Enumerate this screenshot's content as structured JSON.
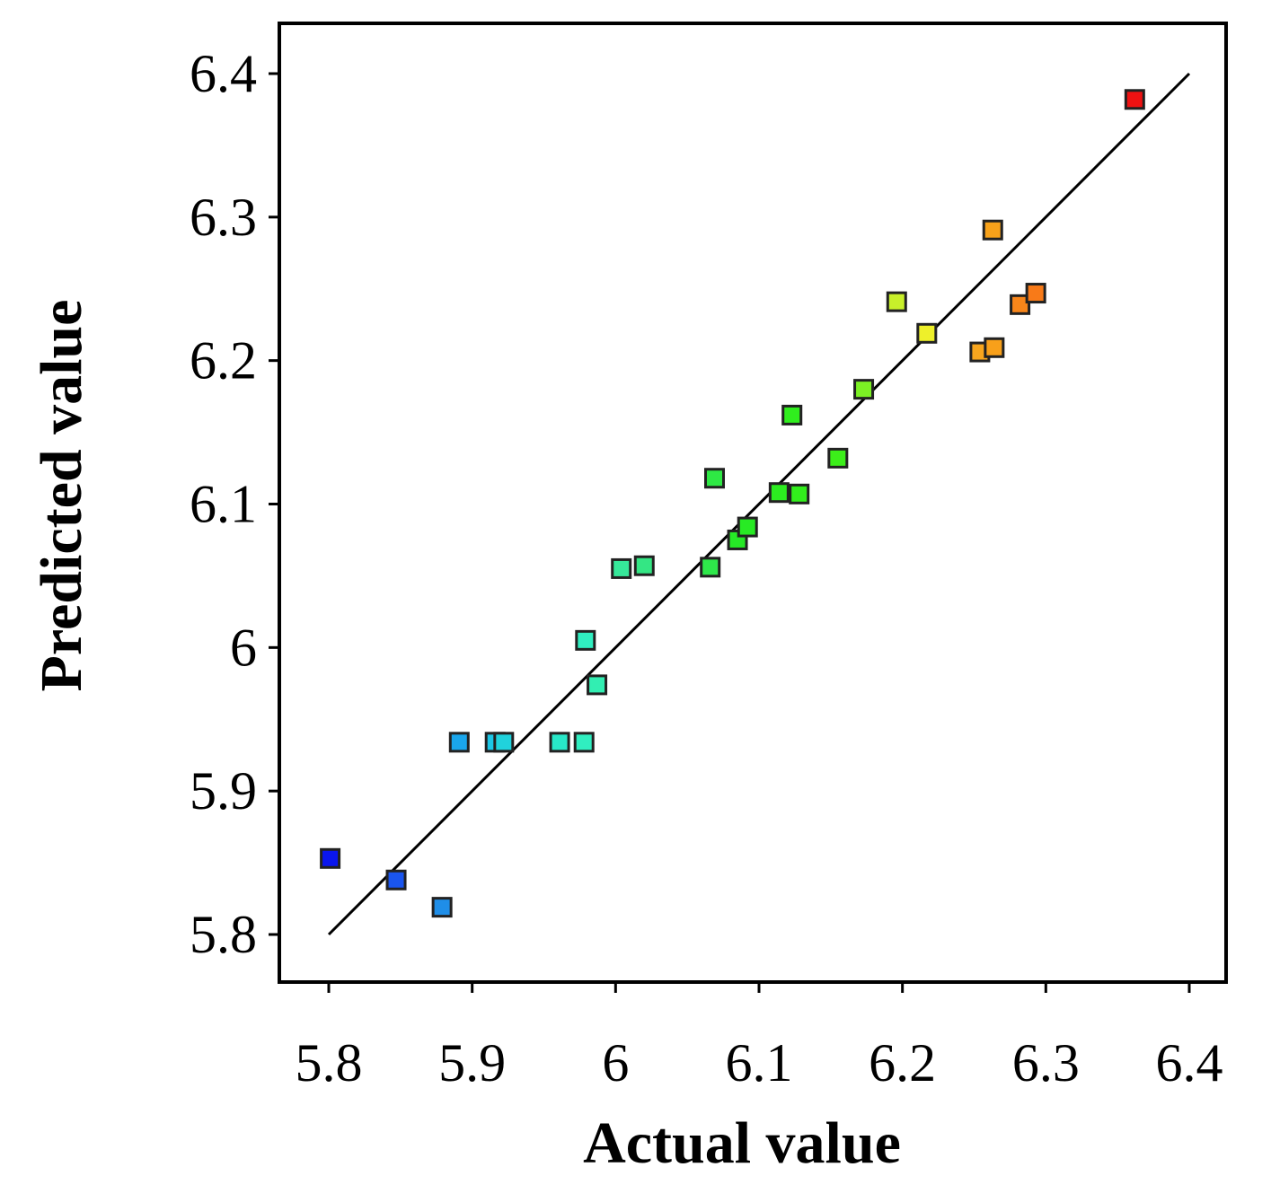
{
  "chart_data": {
    "type": "scatter",
    "title": "",
    "xlabel": "Actual value",
    "ylabel": "Predicted value",
    "xlim": [
      5.8,
      6.4
    ],
    "ylim": [
      5.8,
      6.4
    ],
    "x_ticks": [
      5.8,
      5.9,
      6.0,
      6.1,
      6.2,
      6.3,
      6.4
    ],
    "x_tick_labels": [
      "5.8",
      "5.9",
      "6",
      "6.1",
      "6.2",
      "6.3",
      "6.4"
    ],
    "y_ticks": [
      5.8,
      5.9,
      6.0,
      6.1,
      6.2,
      6.3,
      6.4
    ],
    "y_tick_labels": [
      "5.8",
      "5.9",
      "6",
      "6.1",
      "6.2",
      "6.3",
      "6.4"
    ],
    "reference_line": {
      "from": [
        5.8,
        5.8
      ],
      "to": [
        6.4,
        6.4
      ]
    },
    "grid": false,
    "color_scale": "actual value (blue = low, red = high)",
    "points": [
      {
        "x": 5.801,
        "y": 5.853,
        "color": "#0a16ee"
      },
      {
        "x": 5.847,
        "y": 5.838,
        "color": "#1a55ee"
      },
      {
        "x": 5.879,
        "y": 5.819,
        "color": "#1f8ee8"
      },
      {
        "x": 5.891,
        "y": 5.934,
        "color": "#1aa6ec"
      },
      {
        "x": 5.916,
        "y": 5.934,
        "color": "#1cc6e6"
      },
      {
        "x": 5.922,
        "y": 5.934,
        "color": "#20d2dc"
      },
      {
        "x": 5.961,
        "y": 5.934,
        "color": "#28e8c8"
      },
      {
        "x": 5.978,
        "y": 5.934,
        "color": "#30eec0"
      },
      {
        "x": 5.979,
        "y": 6.005,
        "color": "#30eec0"
      },
      {
        "x": 5.987,
        "y": 5.974,
        "color": "#32eeb2"
      },
      {
        "x": 6.004,
        "y": 6.055,
        "color": "#36e89a"
      },
      {
        "x": 6.02,
        "y": 6.057,
        "color": "#34e684"
      },
      {
        "x": 6.066,
        "y": 6.056,
        "color": "#2ee84a"
      },
      {
        "x": 6.069,
        "y": 6.118,
        "color": "#2ee844"
      },
      {
        "x": 6.085,
        "y": 6.075,
        "color": "#26e826"
      },
      {
        "x": 6.092,
        "y": 6.084,
        "color": "#28ea24"
      },
      {
        "x": 6.114,
        "y": 6.108,
        "color": "#2cec20"
      },
      {
        "x": 6.123,
        "y": 6.162,
        "color": "#30ee1e"
      },
      {
        "x": 6.128,
        "y": 6.107,
        "color": "#32ee1c"
      },
      {
        "x": 6.155,
        "y": 6.132,
        "color": "#3cee1a"
      },
      {
        "x": 6.173,
        "y": 6.18,
        "color": "#7cf024"
      },
      {
        "x": 6.196,
        "y": 6.241,
        "color": "#c8f02a"
      },
      {
        "x": 6.217,
        "y": 6.219,
        "color": "#eef02a"
      },
      {
        "x": 6.254,
        "y": 6.206,
        "color": "#f8a61e"
      },
      {
        "x": 6.263,
        "y": 6.291,
        "color": "#f8a21a"
      },
      {
        "x": 6.264,
        "y": 6.209,
        "color": "#f8a01a"
      },
      {
        "x": 6.282,
        "y": 6.239,
        "color": "#f8861a"
      },
      {
        "x": 6.293,
        "y": 6.247,
        "color": "#f87a18"
      },
      {
        "x": 6.362,
        "y": 6.382,
        "color": "#ee1212"
      }
    ]
  }
}
